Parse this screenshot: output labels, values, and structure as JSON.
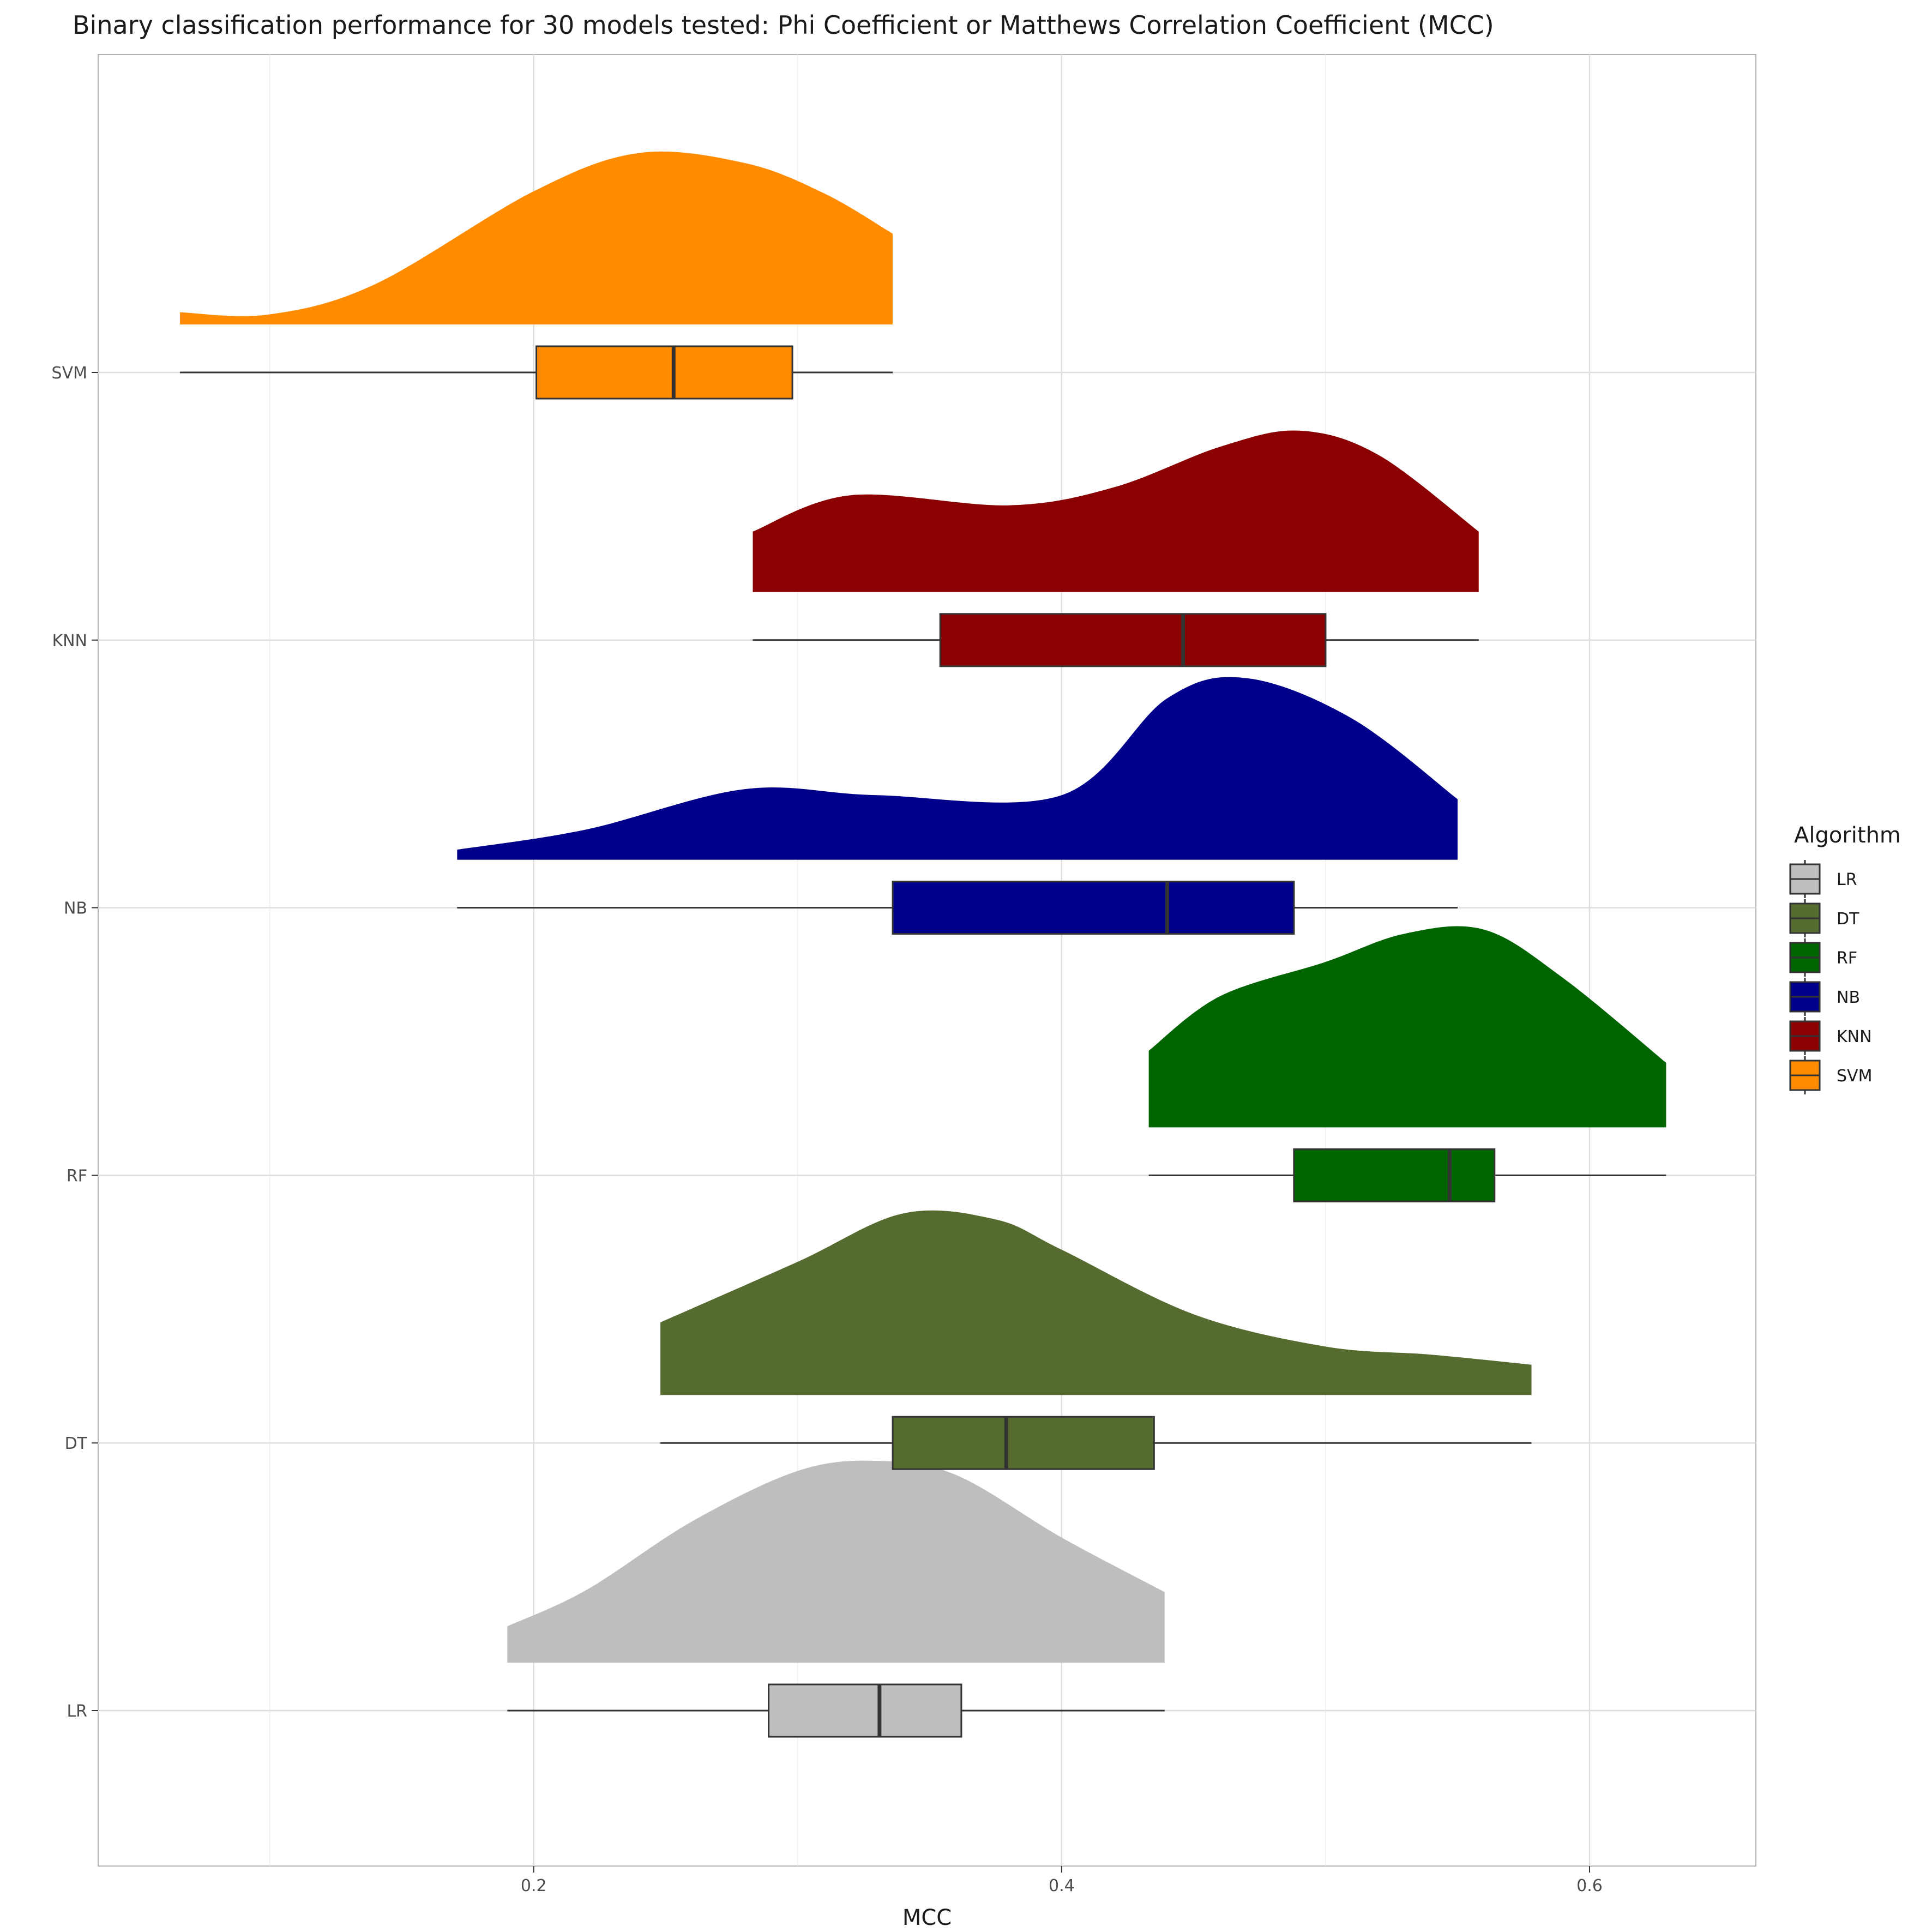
{
  "chart_data": {
    "type": "raincloud (half-violin density + boxplot)",
    "title": "Binary classification performance for 30 models tested: Phi Coefficient or Matthews Correlation Coefficient (MCC)",
    "xlabel": "MCC",
    "ylabel": "",
    "xlim": [
      0.035,
      0.663
    ],
    "x_ticks": [
      {
        "value": 0.2,
        "label": "0.2"
      },
      {
        "value": 0.4,
        "label": "0.4"
      },
      {
        "value": 0.6,
        "label": "0.6"
      }
    ],
    "x_minor_gridlines": [
      0.1,
      0.3,
      0.5
    ],
    "grid": true,
    "legend_title": "Algorithm",
    "legend_position": "right",
    "categories": [
      "LR",
      "DT",
      "RF",
      "NB",
      "KNN",
      "SVM"
    ],
    "series": [
      {
        "name": "LR",
        "color": "#BEBEBE",
        "box": {
          "min": 0.19,
          "q1": 0.289,
          "median": 0.331,
          "q3": 0.362,
          "max": 0.439
        },
        "density": {
          "x": [
            0.19,
            0.22,
            0.26,
            0.3,
            0.33,
            0.36,
            0.4,
            0.439
          ],
          "y": [
            0.18,
            0.36,
            0.7,
            0.95,
            1.0,
            0.93,
            0.62,
            0.35
          ]
        }
      },
      {
        "name": "DT",
        "color": "#556B2F",
        "box": {
          "min": 0.248,
          "q1": 0.336,
          "median": 0.379,
          "q3": 0.435,
          "max": 0.578
        },
        "density": {
          "x": [
            0.248,
            0.3,
            0.34,
            0.375,
            0.4,
            0.45,
            0.5,
            0.54,
            0.578
          ],
          "y": [
            0.36,
            0.66,
            0.9,
            0.87,
            0.72,
            0.4,
            0.24,
            0.2,
            0.15
          ]
        }
      },
      {
        "name": "RF",
        "color": "#006400",
        "box": {
          "min": 0.433,
          "q1": 0.488,
          "median": 0.547,
          "q3": 0.564,
          "max": 0.629
        },
        "density": {
          "x": [
            0.433,
            0.46,
            0.5,
            0.53,
            0.56,
            0.59,
            0.629
          ],
          "y": [
            0.38,
            0.65,
            0.82,
            0.96,
            0.98,
            0.74,
            0.32
          ]
        }
      },
      {
        "name": "NB",
        "color": "#00008B",
        "box": {
          "min": 0.171,
          "q1": 0.336,
          "median": 0.44,
          "q3": 0.488,
          "max": 0.55
        },
        "density": {
          "x": [
            0.171,
            0.22,
            0.28,
            0.33,
            0.4,
            0.44,
            0.47,
            0.51,
            0.55
          ],
          "y": [
            0.05,
            0.15,
            0.35,
            0.32,
            0.32,
            0.8,
            0.9,
            0.7,
            0.3
          ]
        }
      },
      {
        "name": "KNN",
        "color": "#8B0000",
        "box": {
          "min": 0.283,
          "q1": 0.354,
          "median": 0.446,
          "q3": 0.5,
          "max": 0.558
        },
        "density": {
          "x": [
            0.283,
            0.32,
            0.38,
            0.42,
            0.46,
            0.49,
            0.52,
            0.558
          ],
          "y": [
            0.3,
            0.48,
            0.43,
            0.52,
            0.72,
            0.8,
            0.68,
            0.3
          ]
        }
      },
      {
        "name": "SVM",
        "color": "#FF8C00",
        "box": {
          "min": 0.066,
          "q1": 0.201,
          "median": 0.253,
          "q3": 0.298,
          "max": 0.336
        },
        "density": {
          "x": [
            0.066,
            0.1,
            0.14,
            0.2,
            0.24,
            0.28,
            0.31,
            0.336
          ],
          "y": [
            0.06,
            0.05,
            0.2,
            0.66,
            0.85,
            0.8,
            0.65,
            0.45
          ]
        }
      }
    ]
  }
}
